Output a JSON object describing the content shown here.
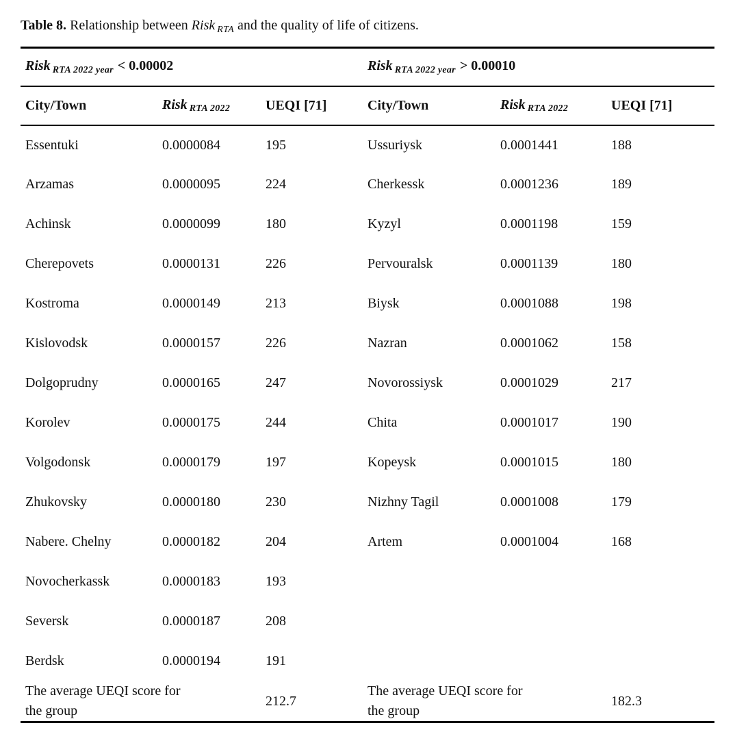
{
  "title": {
    "label": "Table 8.",
    "before_risk": " Relationship between ",
    "risk_word": "Risk",
    "risk_sub": "RTA",
    "after_risk": " and the quality of life of citizens."
  },
  "groups": [
    {
      "header": {
        "risk_word": "Risk",
        "risk_sub": "RTA 2022 year",
        "condition": "< 0.00002"
      },
      "col_headers": {
        "city": "City/Town",
        "risk_word": "Risk",
        "risk_sub": "RTA 2022",
        "ueqi": "UEQI [71]"
      },
      "rows": [
        {
          "city": "Essentuki",
          "risk": "0.0000084",
          "ueqi": "195"
        },
        {
          "city": "Arzamas",
          "risk": "0.0000095",
          "ueqi": "224"
        },
        {
          "city": "Achinsk",
          "risk": "0.0000099",
          "ueqi": "180"
        },
        {
          "city": "Cherepovets",
          "risk": "0.0000131",
          "ueqi": "226"
        },
        {
          "city": "Kostroma",
          "risk": "0.0000149",
          "ueqi": "213"
        },
        {
          "city": "Kislovodsk",
          "risk": "0.0000157",
          "ueqi": "226"
        },
        {
          "city": "Dolgoprudny",
          "risk": "0.0000165",
          "ueqi": "247"
        },
        {
          "city": "Korolev",
          "risk": "0.0000175",
          "ueqi": "244"
        },
        {
          "city": "Volgodonsk",
          "risk": "0.0000179",
          "ueqi": "197"
        },
        {
          "city": "Zhukovsky",
          "risk": "0.0000180",
          "ueqi": "230"
        },
        {
          "city": "Nabere. Chelny",
          "risk": "0.0000182",
          "ueqi": "204"
        },
        {
          "city": "Novocherkassk",
          "risk": "0.0000183",
          "ueqi": "193"
        },
        {
          "city": "Seversk",
          "risk": "0.0000187",
          "ueqi": "208"
        },
        {
          "city": "Berdsk",
          "risk": "0.0000194",
          "ueqi": "191"
        }
      ],
      "average_label": "The average UEQI score for the group",
      "average_value": "212.7"
    },
    {
      "header": {
        "risk_word": "Risk",
        "risk_sub": "RTA 2022 year",
        "condition": "> 0.00010"
      },
      "col_headers": {
        "city": "City/Town",
        "risk_word": "Risk",
        "risk_sub": "RTA 2022",
        "ueqi": "UEQI [71]"
      },
      "rows": [
        {
          "city": "Ussuriysk",
          "risk": "0.0001441",
          "ueqi": "188"
        },
        {
          "city": "Cherkessk",
          "risk": "0.0001236",
          "ueqi": "189"
        },
        {
          "city": "Kyzyl",
          "risk": "0.0001198",
          "ueqi": "159"
        },
        {
          "city": "Pervouralsk",
          "risk": "0.0001139",
          "ueqi": "180"
        },
        {
          "city": "Biysk",
          "risk": "0.0001088",
          "ueqi": "198"
        },
        {
          "city": "Nazran",
          "risk": "0.0001062",
          "ueqi": "158"
        },
        {
          "city": "Novorossiysk",
          "risk": "0.0001029",
          "ueqi": "217"
        },
        {
          "city": "Chita",
          "risk": "0.0001017",
          "ueqi": "190"
        },
        {
          "city": "Kopeysk",
          "risk": "0.0001015",
          "ueqi": "180"
        },
        {
          "city": "Nizhny Tagil",
          "risk": "0.0001008",
          "ueqi": "179"
        },
        {
          "city": "Artem",
          "risk": "0.0001004",
          "ueqi": "168"
        }
      ],
      "average_label": "The average UEQI score for the group",
      "average_value": "182.3"
    }
  ],
  "colors": {
    "text": "#111111",
    "rule": "#000000",
    "background": "#ffffff"
  }
}
